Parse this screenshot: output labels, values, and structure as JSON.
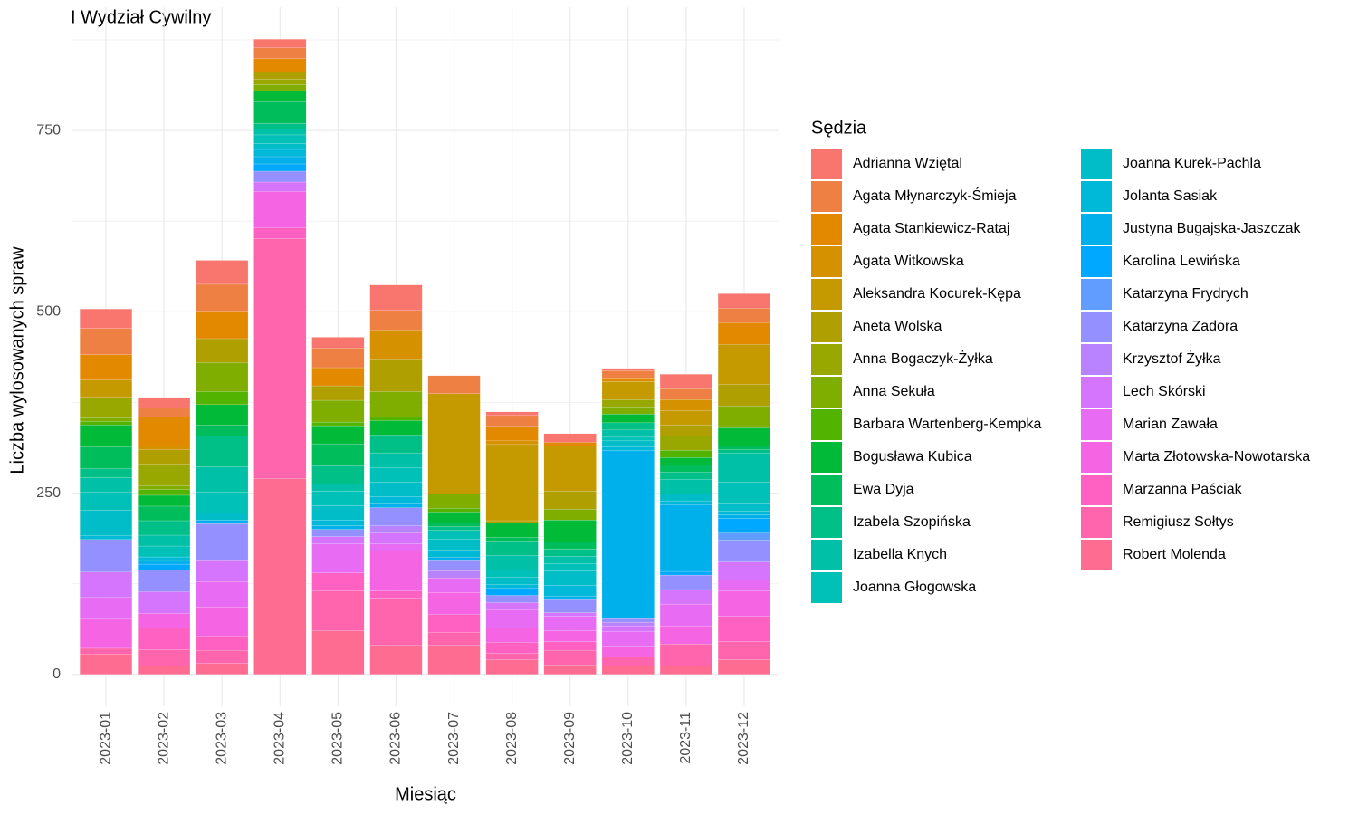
{
  "chart_data": {
    "type": "stacked_bar",
    "title": "I Wydział Cywilny",
    "x_label": "Miesiąc",
    "y_label": "Liczba wylosowanych spraw",
    "legend_title": "Sędzia",
    "categories": [
      "2023-01",
      "2023-02",
      "2023-03",
      "2023-04",
      "2023-05",
      "2023-06",
      "2023-07",
      "2023-08",
      "2023-09",
      "2023-10",
      "2023-11",
      "2023-12"
    ],
    "ylim": [
      -44,
      920
    ],
    "yticks": [
      0,
      250,
      500,
      750
    ],
    "grid": true,
    "legend": "right",
    "series": [
      {
        "name": "Adrianna Wziętal",
        "color": "#F8766D",
        "values": [
          27,
          15,
          33,
          12,
          15,
          35,
          0,
          5,
          12,
          3,
          20,
          20
        ]
      },
      {
        "name": "Agata Młynarczyk-Śmieja",
        "color": "#EE8044",
        "values": [
          36,
          12,
          37,
          15,
          27,
          27,
          25,
          15,
          0,
          10,
          15,
          20
        ]
      },
      {
        "name": "Agata Stankiewicz-Rataj",
        "color": "#E38900",
        "values": [
          35,
          40,
          38,
          18,
          25,
          0,
          0,
          20,
          5,
          5,
          0,
          30
        ]
      },
      {
        "name": "Agata Witkowska",
        "color": "#D69100",
        "values": [
          0,
          5,
          0,
          0,
          0,
          40,
          0,
          5,
          0,
          0,
          15,
          0
        ]
      },
      {
        "name": "Aleksandra Kocurek-Kępa",
        "color": "#C49A00",
        "values": [
          24,
          0,
          0,
          0,
          0,
          0,
          138,
          105,
          62,
          25,
          20,
          55
        ]
      },
      {
        "name": "Aneta Wolska",
        "color": "#B09F00",
        "values": [
          0,
          20,
          33,
          10,
          20,
          45,
          0,
          3,
          25,
          0,
          15,
          30
        ]
      },
      {
        "name": "Anna Bogaczyk-Żyłka",
        "color": "#99A800",
        "values": [
          28,
          30,
          0,
          8,
          0,
          0,
          0,
          0,
          0,
          10,
          20,
          0
        ]
      },
      {
        "name": "Anna Sekuła",
        "color": "#7FAE00",
        "values": [
          5,
          5,
          40,
          8,
          30,
          35,
          20,
          0,
          15,
          10,
          0,
          30
        ]
      },
      {
        "name": "Barbara Wartenberg-Kempka",
        "color": "#53B400",
        "values": [
          5,
          8,
          18,
          0,
          5,
          5,
          5,
          0,
          0,
          0,
          10,
          0
        ]
      },
      {
        "name": "Bogusława Kubica",
        "color": "#00BA38",
        "values": [
          30,
          15,
          28,
          15,
          25,
          20,
          15,
          20,
          30,
          12,
          10,
          25
        ]
      },
      {
        "name": "Ewa Dyja",
        "color": "#00BD5C",
        "values": [
          30,
          20,
          15,
          30,
          30,
          0,
          5,
          5,
          10,
          0,
          10,
          5
        ]
      },
      {
        "name": "Izabela Szopińska",
        "color": "#00C087",
        "values": [
          13,
          20,
          43,
          8,
          25,
          25,
          5,
          20,
          10,
          10,
          10,
          5
        ]
      },
      {
        "name": "Izabella Knych",
        "color": "#00C0A7",
        "values": [
          20,
          15,
          35,
          8,
          10,
          20,
          3,
          20,
          10,
          10,
          20,
          40
        ]
      },
      {
        "name": "Joanna Głogowska",
        "color": "#00C1B8",
        "values": [
          25,
          15,
          28,
          12,
          20,
          20,
          10,
          10,
          10,
          5,
          0,
          30
        ]
      },
      {
        "name": "Joanna Kurek-Pachla",
        "color": "#00BDC8",
        "values": [
          35,
          0,
          10,
          8,
          20,
          20,
          15,
          10,
          20,
          8,
          10,
          10
        ]
      },
      {
        "name": "Jolanta Sasiak",
        "color": "#00B8D8",
        "values": [
          5,
          5,
          0,
          10,
          8,
          10,
          10,
          5,
          15,
          5,
          5,
          5
        ]
      },
      {
        "name": "Justyna Bugajska-Jaszczak",
        "color": "#00B0EB",
        "values": [
          0,
          5,
          5,
          10,
          5,
          5,
          3,
          0,
          5,
          232,
          92,
          5
        ]
      },
      {
        "name": "Karolina Lewińska",
        "color": "#00A9FF",
        "values": [
          0,
          8,
          0,
          10,
          0,
          0,
          0,
          10,
          0,
          0,
          5,
          20
        ]
      },
      {
        "name": "Katarzyna Frydrych",
        "color": "#619CFF",
        "values": [
          0,
          0,
          0,
          0,
          0,
          0,
          0,
          0,
          0,
          0,
          0,
          10
        ]
      },
      {
        "name": "Katarzyna Zadora",
        "color": "#9590FF",
        "values": [
          45,
          30,
          50,
          15,
          10,
          25,
          15,
          10,
          18,
          5,
          20,
          30
        ]
      },
      {
        "name": "Krzysztof Żyłka",
        "color": "#B983FF",
        "values": [
          0,
          0,
          0,
          0,
          0,
          10,
          10,
          0,
          0,
          5,
          0,
          0
        ]
      },
      {
        "name": "Lech Skórski",
        "color": "#D575FE",
        "values": [
          35,
          30,
          30,
          13,
          10,
          15,
          0,
          10,
          5,
          8,
          20,
          25
        ]
      },
      {
        "name": "Marian Zawała",
        "color": "#E76BF3",
        "values": [
          30,
          0,
          35,
          0,
          40,
          10,
          20,
          25,
          20,
          20,
          30,
          15
        ]
      },
      {
        "name": "Marta Złotowska-Nowotarska",
        "color": "#F564E3",
        "values": [
          40,
          20,
          40,
          50,
          0,
          55,
          30,
          20,
          15,
          15,
          25,
          35
        ]
      },
      {
        "name": "Marzanna Paściak",
        "color": "#FF61C3",
        "values": [
          0,
          30,
          20,
          15,
          25,
          10,
          25,
          15,
          12,
          0,
          0,
          35
        ]
      },
      {
        "name": "Remigiusz Sołtys",
        "color": "#FF65AC",
        "values": [
          8,
          22,
          18,
          331,
          55,
          65,
          18,
          9,
          20,
          12,
          30,
          25
        ]
      },
      {
        "name": "Robert Molenda",
        "color": "#FF6C91",
        "values": [
          28,
          12,
          15,
          270,
          60,
          40,
          40,
          20,
          13,
          12,
          12,
          20
        ]
      }
    ]
  }
}
